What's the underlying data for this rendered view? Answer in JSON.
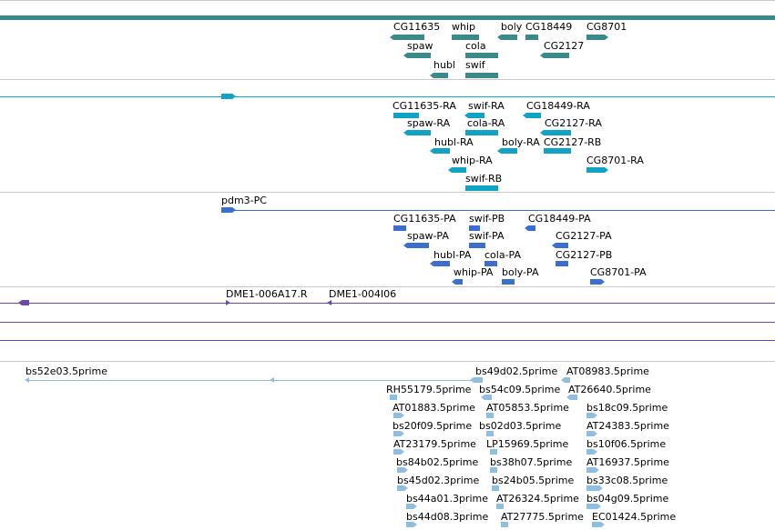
{
  "colors": {
    "gene": "#3a8a8a",
    "transcript": "#11a3c6",
    "protein": "#3a6ecf",
    "clone": "#6a4aa6",
    "est": "#8fbfe0",
    "separator": "#c8c8c8"
  },
  "tracks": {
    "genes": {
      "labels": [
        "CG11635",
        "whip",
        "boly",
        "CG18449",
        "CG8701",
        "spaw",
        "cola",
        "CG2127",
        "hubl",
        "swif"
      ]
    },
    "transcripts": {
      "labels": [
        "CG11635-RA",
        "swif-RA",
        "CG18449-RA",
        "spaw-RA",
        "cola-RA",
        "CG2127-RA",
        "hubl-RA",
        "boly-RA",
        "CG2127-RB",
        "whip-RA",
        "CG8701-RA",
        "swif-RB"
      ]
    },
    "proteins": {
      "labels": [
        "pdm3-PC",
        "CG11635-PA",
        "swif-PB",
        "CG18449-PA",
        "spaw-PA",
        "swif-PA",
        "CG2127-PA",
        "hubl-PA",
        "cola-PA",
        "CG2127-PB",
        "whip-PA",
        "boly-PA",
        "CG8701-PA"
      ]
    },
    "clones": {
      "labels": [
        "DME1-006A17.R",
        "DME1-004I06"
      ]
    },
    "ests": {
      "labels": [
        "bs52e03.5prime",
        "bs49d02.5prime",
        "AT08983.5prime",
        "RH55179.5prime",
        "bs54c09.5prime",
        "AT26640.5prime",
        "AT01883.5prime",
        "AT05853.5prime",
        "bs18c09.5prime",
        "bs20f09.5prime",
        "bs02d03.5prime",
        "AT24383.5prime",
        "AT23179.5prime",
        "LP15969.5prime",
        "bs10f06.5prime",
        "bs84b02.5prime",
        "bs38h07.5prime",
        "AT16937.5prime",
        "bs45d02.3prime",
        "bs24b05.5prime",
        "bs33c08.5prime",
        "bs44a01.3prime",
        "AT26324.5prime",
        "bs04g09.5prime",
        "bs44d08.3prime",
        "AT27775.5prime",
        "EC01424.5prime"
      ]
    }
  }
}
